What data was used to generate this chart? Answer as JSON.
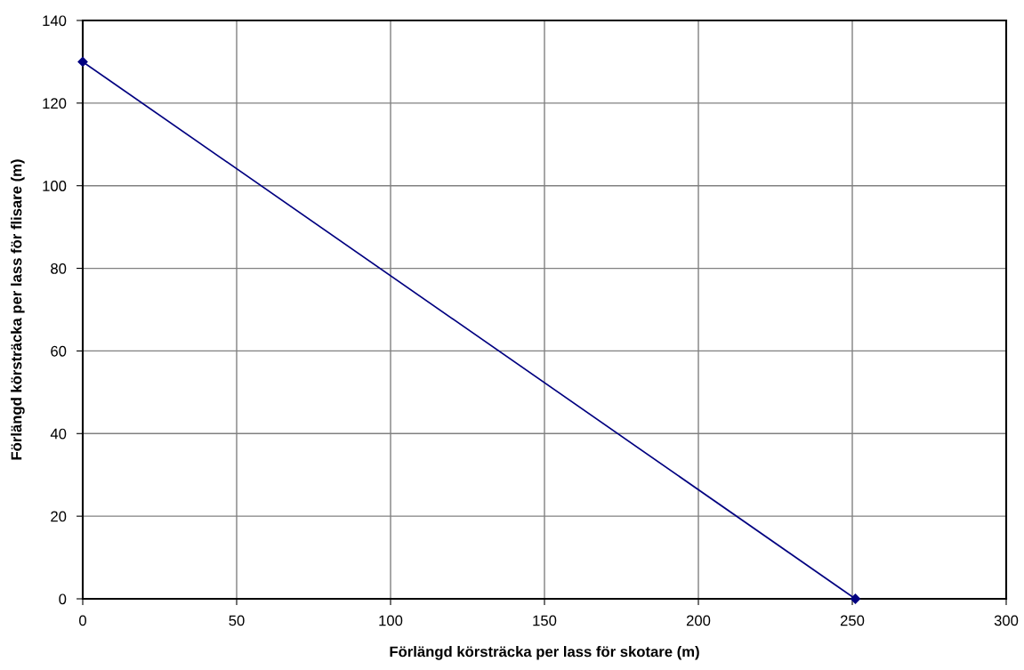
{
  "chart_data": {
    "type": "line",
    "xlabel": "Förlängd körsträcka per lass för skotare (m)",
    "ylabel": "Förlängd körsträcka per lass för flisare (m)",
    "x": [
      0,
      251
    ],
    "series": [
      {
        "color": "#000080",
        "values": [
          130,
          0
        ]
      }
    ],
    "xlim": [
      0,
      300
    ],
    "xticks": [
      0,
      50,
      100,
      150,
      200,
      250,
      300
    ],
    "ylim": [
      0,
      140
    ],
    "yticks": [
      0,
      20,
      40,
      60,
      80,
      100,
      120,
      140
    ],
    "grid": true,
    "marker": "diamond",
    "line_style": "solid"
  }
}
